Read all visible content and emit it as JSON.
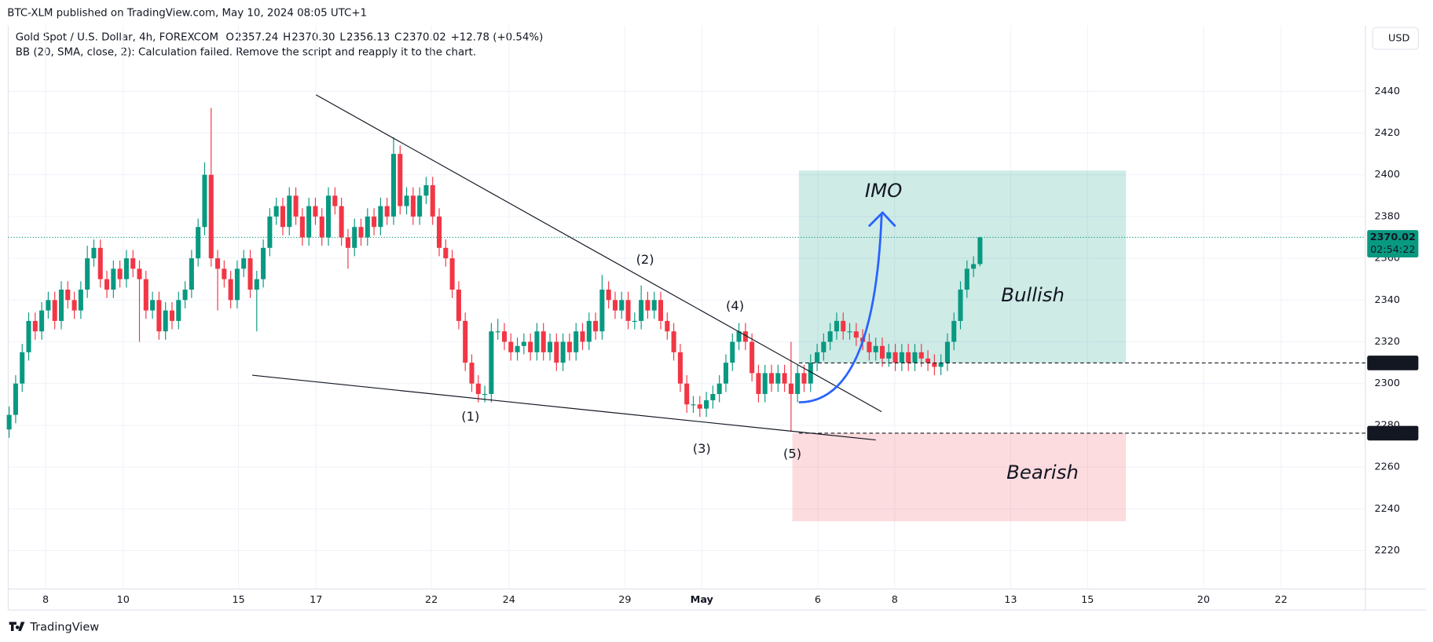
{
  "chart_data": {
    "type": "candlestick",
    "published": "BTC-XLM published on TradingView.com, May 10, 2024 08:05 UTC+1",
    "title": "Gold Spot / U.S. Dollar, 4h, FOREXCOM",
    "ohlc_header": [
      {
        "label": "O",
        "value": "2357.24"
      },
      {
        "label": "H",
        "value": "2370.30"
      },
      {
        "label": "L",
        "value": "2356.13"
      },
      {
        "label": "C",
        "value": "2370.02"
      }
    ],
    "change": "+12.78 (+0.54%)",
    "indicator": "BB (20, SMA, close, 2): Calculation failed. Remove the script and reapply it to the chart.",
    "currency": "USD",
    "brand": "TradingView",
    "countdown": "02:54:22",
    "up_color": "#089981",
    "down_color": "#f23645",
    "open": [
      2278,
      2285,
      2300,
      2315,
      2330,
      2325,
      2335,
      2340,
      2330,
      2345,
      2340,
      2335,
      2345,
      2360,
      2365,
      2350,
      2345,
      2355,
      2350,
      2360,
      2355,
      2350,
      2335,
      2340,
      2325,
      2335,
      2330,
      2340,
      2345,
      2360,
      2375,
      2400,
      2360,
      2355,
      2350,
      2340,
      2355,
      2360,
      2345,
      2350,
      2365,
      2380,
      2385,
      2375,
      2390,
      2380,
      2370,
      2385,
      2380,
      2370,
      2390,
      2385,
      2370,
      2365,
      2375,
      2370,
      2380,
      2375,
      2385,
      2380,
      2410,
      2385,
      2390,
      2380,
      2390,
      2395,
      2380,
      2365,
      2360,
      2345,
      2330,
      2310,
      2300,
      2295,
      2295,
      2325,
      2325,
      2320,
      2315,
      2318,
      2320,
      2315,
      2325,
      2315,
      2320,
      2310,
      2320,
      2315,
      2325,
      2320,
      2330,
      2325,
      2345,
      2340,
      2335,
      2340,
      2330,
      2330,
      2340,
      2335,
      2340,
      2330,
      2325,
      2315,
      2300,
      2290,
      2290,
      2288,
      2292,
      2295,
      2300,
      2310,
      2320,
      2325,
      2320,
      2305,
      2295,
      2305,
      2300,
      2305,
      2300,
      2295,
      2305,
      2300,
      2310,
      2315,
      2320,
      2325,
      2330,
      2325,
      2325,
      2322,
      2320,
      2315,
      2318,
      2312,
      2315,
      2310,
      2315,
      2310,
      2315,
      2312,
      2310,
      2308,
      2310,
      2320,
      2330,
      2345,
      2355,
      2357.24
    ],
    "high": [
      2289,
      2304,
      2319,
      2334,
      2334,
      2339,
      2344,
      2344,
      2349,
      2349,
      2344,
      2349,
      2366,
      2369,
      2369,
      2354,
      2359,
      2359,
      2364,
      2364,
      2359,
      2354,
      2344,
      2344,
      2339,
      2339,
      2344,
      2349,
      2364,
      2379,
      2406,
      2432,
      2364,
      2359,
      2354,
      2359,
      2364,
      2364,
      2354,
      2369,
      2384,
      2389,
      2389,
      2394,
      2394,
      2384,
      2389,
      2389,
      2384,
      2394,
      2394,
      2389,
      2374,
      2379,
      2379,
      2384,
      2384,
      2389,
      2389,
      2418,
      2414,
      2394,
      2394,
      2394,
      2399,
      2399,
      2384,
      2369,
      2364,
      2349,
      2334,
      2314,
      2304,
      2299,
      2329,
      2331,
      2329,
      2324,
      2322,
      2324,
      2324,
      2329,
      2329,
      2324,
      2324,
      2324,
      2324,
      2329,
      2329,
      2334,
      2334,
      2352,
      2349,
      2344,
      2344,
      2344,
      2334,
      2347,
      2344,
      2344,
      2344,
      2334,
      2329,
      2319,
      2304,
      2294,
      2294,
      2296,
      2299,
      2304,
      2314,
      2324,
      2329,
      2329,
      2324,
      2309,
      2309,
      2309,
      2309,
      2309,
      2320,
      2309,
      2309,
      2314,
      2319,
      2324,
      2329,
      2334,
      2334,
      2329,
      2329,
      2326,
      2324,
      2322,
      2322,
      2319,
      2319,
      2319,
      2319,
      2319,
      2319,
      2316,
      2314,
      2314,
      2324,
      2334,
      2349,
      2359,
      2361,
      2370.3
    ],
    "low": [
      2274,
      2281,
      2296,
      2311,
      2321,
      2321,
      2331,
      2326,
      2326,
      2336,
      2331,
      2331,
      2341,
      2356,
      2346,
      2341,
      2341,
      2346,
      2346,
      2351,
      2320,
      2331,
      2331,
      2321,
      2321,
      2326,
      2326,
      2336,
      2341,
      2356,
      2371,
      2356,
      2335,
      2346,
      2336,
      2336,
      2351,
      2341,
      2325,
      2346,
      2361,
      2376,
      2371,
      2371,
      2376,
      2366,
      2366,
      2376,
      2366,
      2366,
      2381,
      2366,
      2355,
      2361,
      2366,
      2366,
      2371,
      2371,
      2376,
      2376,
      2381,
      2381,
      2376,
      2376,
      2386,
      2376,
      2361,
      2356,
      2341,
      2326,
      2306,
      2296,
      2291,
      2291,
      2291,
      2321,
      2316,
      2311,
      2311,
      2314,
      2311,
      2311,
      2311,
      2311,
      2306,
      2306,
      2311,
      2311,
      2316,
      2316,
      2321,
      2321,
      2336,
      2331,
      2331,
      2326,
      2326,
      2326,
      2331,
      2331,
      2326,
      2321,
      2311,
      2296,
      2286,
      2286,
      2284,
      2284,
      2288,
      2291,
      2296,
      2306,
      2316,
      2316,
      2301,
      2291,
      2291,
      2296,
      2296,
      2296,
      2277,
      2291,
      2296,
      2296,
      2306,
      2311,
      2316,
      2321,
      2321,
      2321,
      2318,
      2316,
      2311,
      2311,
      2308,
      2308,
      2306,
      2306,
      2306,
      2306,
      2308,
      2306,
      2304,
      2304,
      2306,
      2316,
      2326,
      2341,
      2351,
      2356.13
    ],
    "close": [
      2285,
      2300,
      2315,
      2330,
      2325,
      2335,
      2340,
      2330,
      2345,
      2340,
      2335,
      2345,
      2360,
      2365,
      2350,
      2345,
      2355,
      2350,
      2360,
      2355,
      2350,
      2335,
      2340,
      2325,
      2335,
      2330,
      2340,
      2345,
      2360,
      2375,
      2400,
      2360,
      2355,
      2350,
      2340,
      2355,
      2360,
      2345,
      2350,
      2365,
      2380,
      2385,
      2375,
      2390,
      2380,
      2370,
      2385,
      2380,
      2370,
      2390,
      2385,
      2370,
      2365,
      2375,
      2370,
      2380,
      2375,
      2385,
      2380,
      2410,
      2385,
      2390,
      2380,
      2390,
      2395,
      2380,
      2365,
      2360,
      2345,
      2330,
      2310,
      2300,
      2295,
      2295,
      2325,
      2325,
      2320,
      2315,
      2318,
      2320,
      2315,
      2325,
      2315,
      2320,
      2310,
      2320,
      2315,
      2325,
      2320,
      2330,
      2325,
      2345,
      2340,
      2335,
      2340,
      2330,
      2330,
      2340,
      2335,
      2340,
      2330,
      2325,
      2315,
      2300,
      2290,
      2290,
      2288,
      2292,
      2295,
      2300,
      2310,
      2320,
      2325,
      2320,
      2305,
      2295,
      2305,
      2300,
      2305,
      2300,
      2295,
      2305,
      2300,
      2310,
      2315,
      2320,
      2325,
      2330,
      2325,
      2325,
      2322,
      2320,
      2315,
      2318,
      2312,
      2315,
      2310,
      2315,
      2310,
      2315,
      2312,
      2310,
      2308,
      2310,
      2320,
      2330,
      2345,
      2355,
      2357.24,
      2370.02
    ],
    "xlim": [
      0,
      208
    ],
    "xticks": [
      {
        "value": 5.6,
        "label": "8"
      },
      {
        "value": 17.5,
        "label": "10"
      },
      {
        "value": 35.2,
        "label": "15"
      },
      {
        "value": 47.1,
        "label": "17"
      },
      {
        "value": 64.8,
        "label": "22"
      },
      {
        "value": 76.7,
        "label": "24"
      },
      {
        "value": 94.5,
        "label": "29"
      },
      {
        "value": 106.3,
        "label": "May"
      },
      {
        "value": 124.1,
        "label": "6"
      },
      {
        "value": 135.9,
        "label": "8"
      },
      {
        "value": 153.7,
        "label": "13"
      },
      {
        "value": 165.5,
        "label": "15"
      },
      {
        "value": 183.3,
        "label": "20"
      },
      {
        "value": 195.2,
        "label": "22"
      }
    ],
    "ylim": [
      2200,
      2472
    ],
    "yticks": [
      2220,
      2240,
      2260,
      2280,
      2300,
      2320,
      2340,
      2360,
      2380,
      2400,
      2420,
      2440
    ],
    "grid": true,
    "levels": [
      2309.87,
      2276.23
    ],
    "trendlines": [
      {
        "x": [
          47.1,
          133.9
        ],
        "y": [
          2438.3,
          2286.5
        ]
      },
      {
        "x": [
          37.3,
          133
        ],
        "y": [
          2304,
          2273
        ]
      }
    ],
    "zones": [
      {
        "name": "Bullish",
        "color": "#089981",
        "x": [
          121.2,
          171.4
        ],
        "y": [
          2309.87,
          2402
        ],
        "label_at": [
          157.1,
          2342
        ]
      },
      {
        "name": "Bearish",
        "color": "#f7525f",
        "x": [
          120.2,
          171.4
        ],
        "y": [
          2234,
          2276.23
        ],
        "label_at": [
          158.6,
          2257
        ]
      }
    ],
    "wave_labels": [
      {
        "text": "(1)",
        "x": 70.8,
        "y": 2284
      },
      {
        "text": "(2)",
        "x": 97.6,
        "y": 2359
      },
      {
        "text": "(3)",
        "x": 106.3,
        "y": 2268.5
      },
      {
        "text": "(4)",
        "x": 111.4,
        "y": 2337
      },
      {
        "text": "(5)",
        "x": 120.2,
        "y": 2266
      }
    ],
    "arrow": {
      "text": "IMO",
      "color": "#2962ff",
      "x": [
        121.2,
        133.9
      ],
      "y": [
        2291,
        2381
      ],
      "text_at": [
        134.2,
        2392
      ]
    }
  }
}
